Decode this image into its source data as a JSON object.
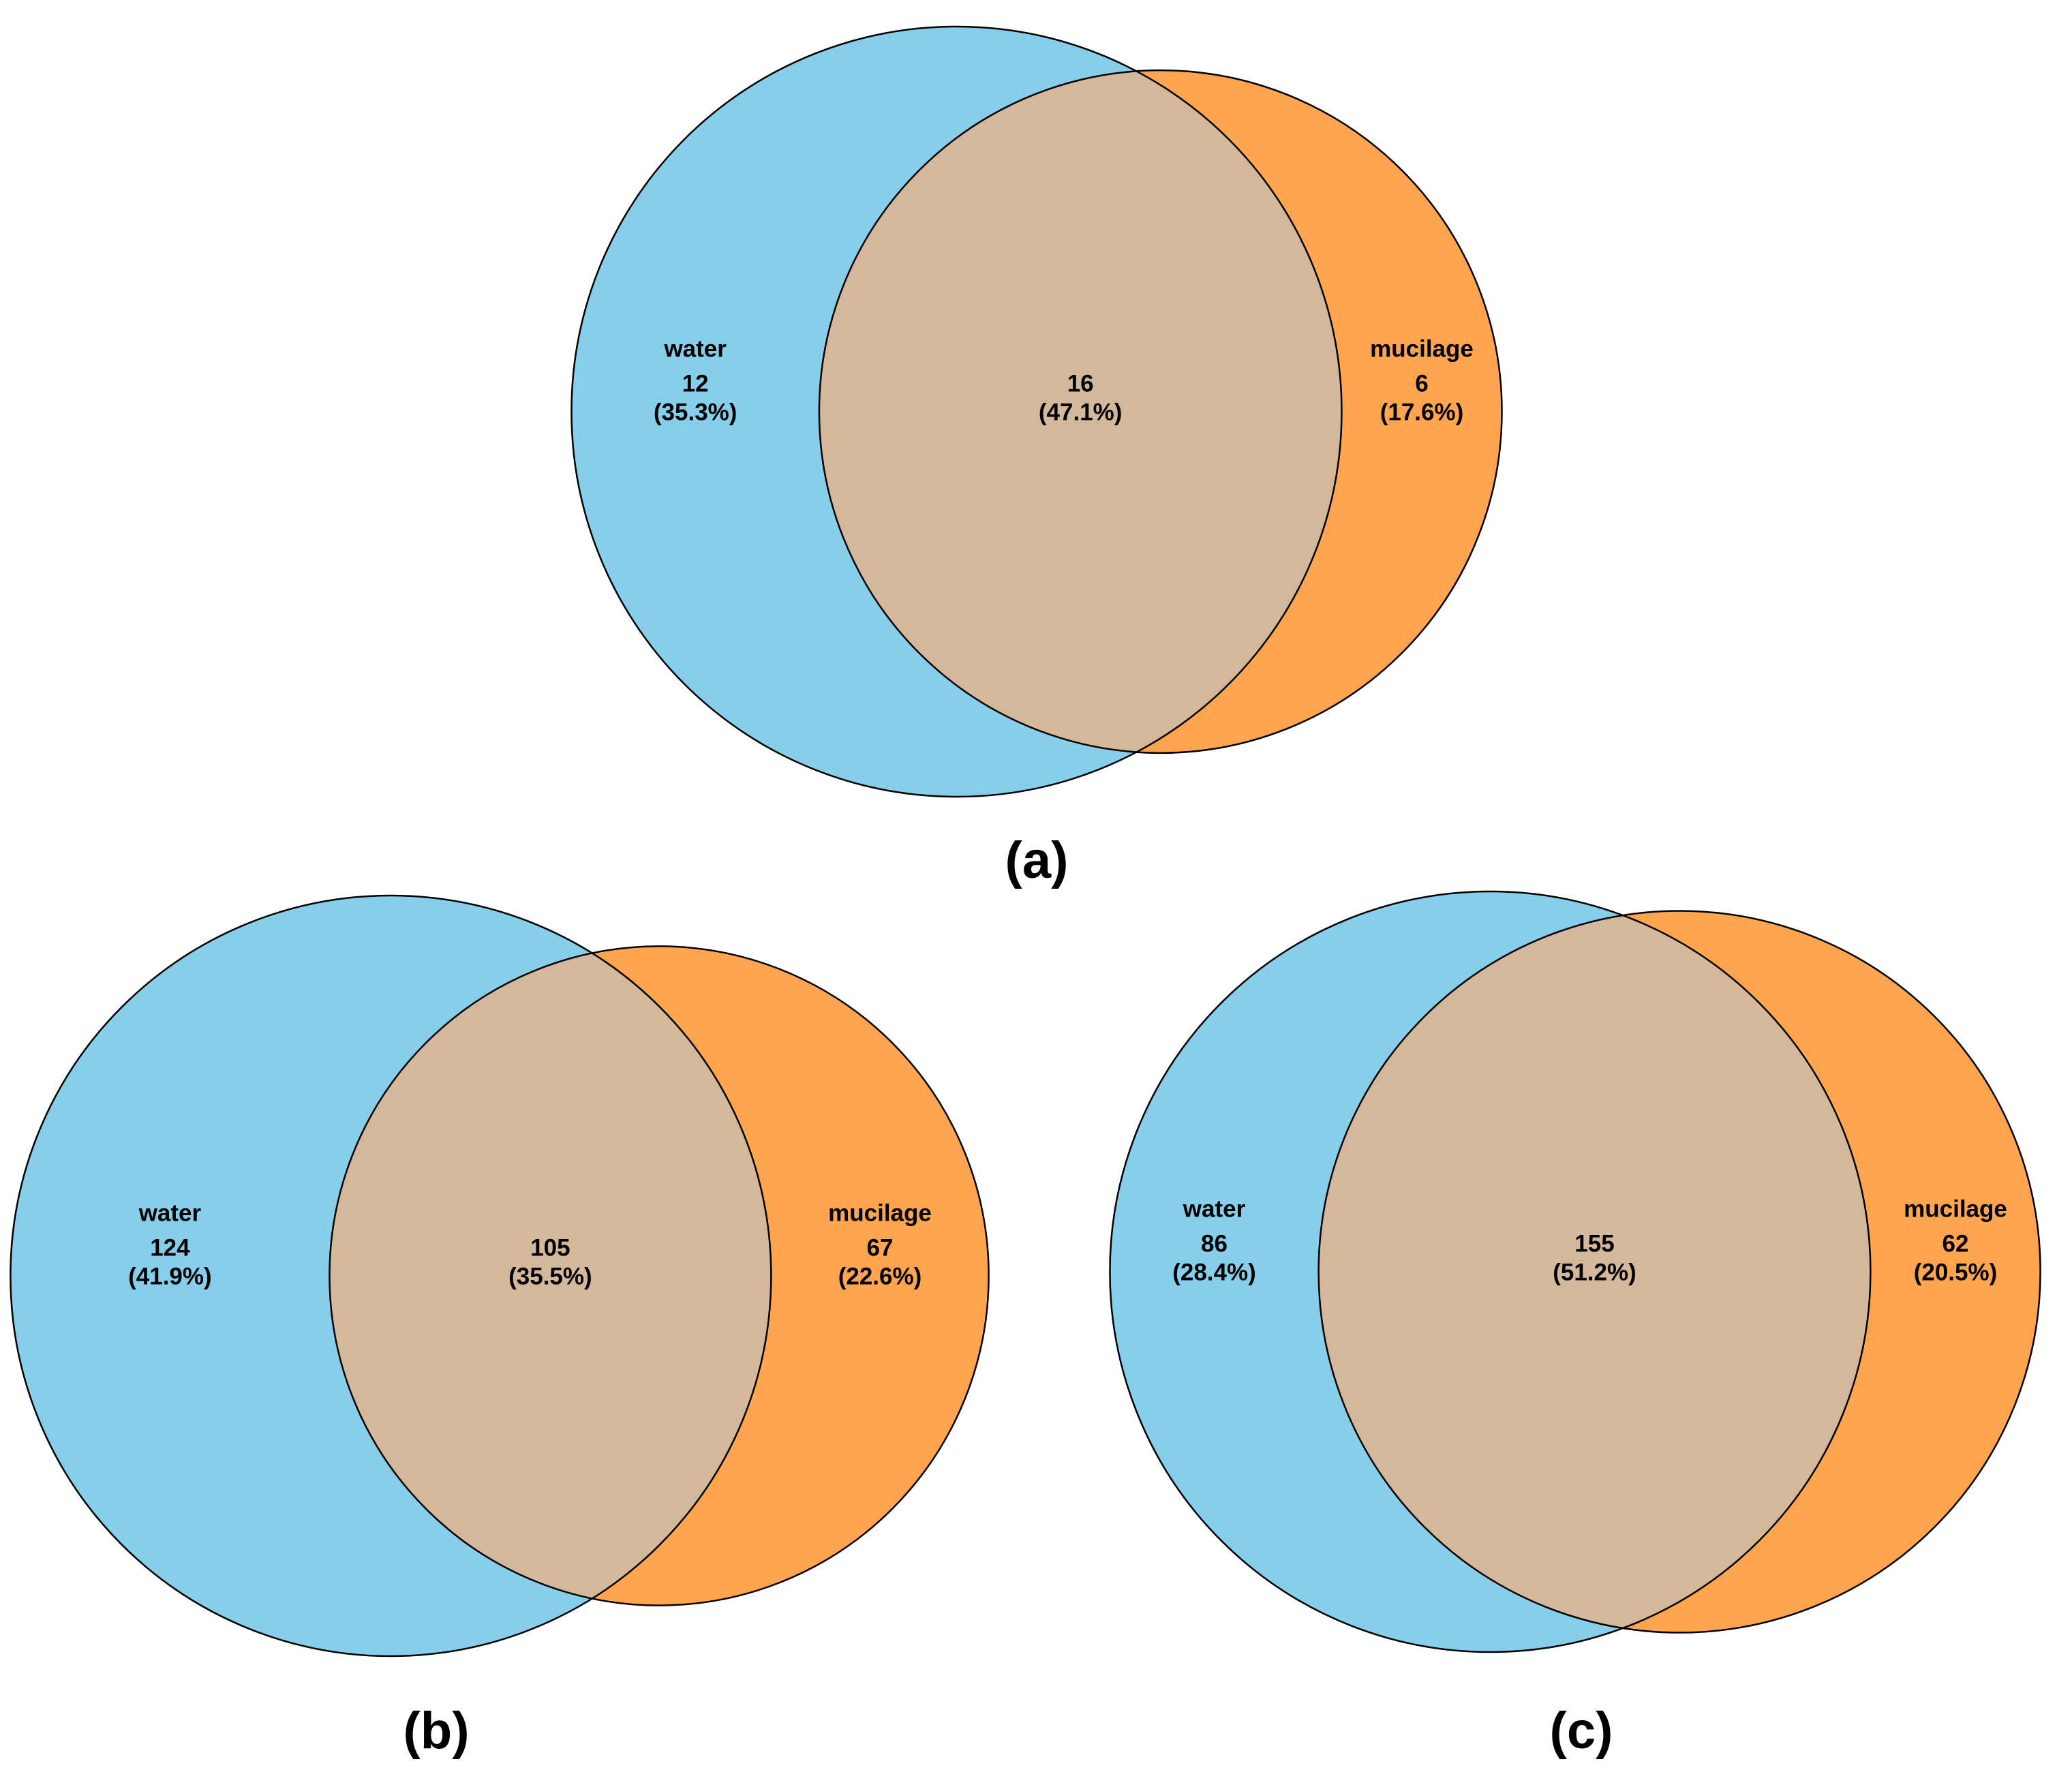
{
  "chart_data": [
    {
      "type": "venn",
      "title": "(a)",
      "sets": [
        {
          "name": "water",
          "color": "#87CEEB"
        },
        {
          "name": "mucilage",
          "color": "#FFA54F"
        }
      ],
      "overlap_color": "#D4B89C",
      "values": [
        12,
        16,
        6
      ],
      "percentages": [
        35.3,
        47.1,
        17.6
      ],
      "percentage_labels": [
        "(35.3%)",
        "(47.1%)",
        "(17.6%)"
      ]
    },
    {
      "type": "venn",
      "title": "(b)",
      "sets": [
        {
          "name": "water",
          "color": "#87CEEB"
        },
        {
          "name": "mucilage",
          "color": "#FFA54F"
        }
      ],
      "overlap_color": "#D4B89C",
      "values": [
        124,
        105,
        67
      ],
      "percentages": [
        41.9,
        35.5,
        22.6
      ],
      "percentage_labels": [
        "(41.9%)",
        "(35.5%)",
        "(22.6%)"
      ]
    },
    {
      "type": "venn",
      "title": "(c)",
      "sets": [
        {
          "name": "water",
          "color": "#87CEEB"
        },
        {
          "name": "mucilage",
          "color": "#FFA54F"
        }
      ],
      "overlap_color": "#D4B89C",
      "values": [
        86,
        155,
        62
      ],
      "percentages": [
        28.4,
        51.2,
        20.5
      ],
      "percentage_labels": [
        "(28.4%)",
        "(51.2%)",
        "(20.5%)"
      ]
    }
  ]
}
